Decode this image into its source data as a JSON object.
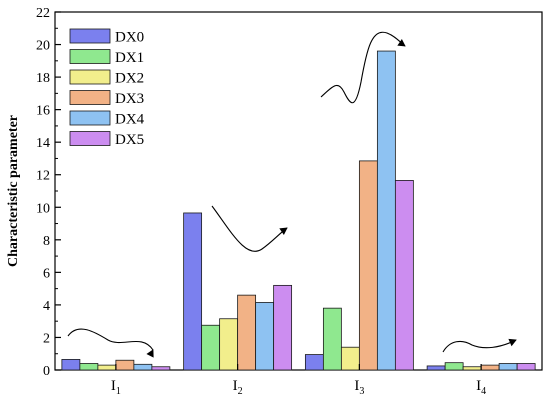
{
  "chart_data": {
    "type": "bar",
    "ylabel": "Characteristic parameter",
    "xlabel": "",
    "ylim": [
      0,
      22
    ],
    "yticks": [
      0,
      2,
      4,
      6,
      8,
      10,
      12,
      14,
      16,
      18,
      20,
      22
    ],
    "categories": [
      {
        "base": "I",
        "sub": "1"
      },
      {
        "base": "I",
        "sub": "2"
      },
      {
        "base": "I",
        "sub": "3"
      },
      {
        "base": "I",
        "sub": "4"
      }
    ],
    "series": [
      {
        "name": "DX0",
        "color": "#7b80ee",
        "values": [
          0.65,
          9.65,
          0.95,
          0.25
        ]
      },
      {
        "name": "DX1",
        "color": "#8fe88f",
        "values": [
          0.4,
          2.75,
          3.8,
          0.45
        ]
      },
      {
        "name": "DX2",
        "color": "#f2ee8c",
        "values": [
          0.3,
          3.15,
          1.4,
          0.2
        ]
      },
      {
        "name": "DX3",
        "color": "#f2b286",
        "values": [
          0.6,
          4.6,
          12.85,
          0.3
        ]
      },
      {
        "name": "DX4",
        "color": "#8ec2f2",
        "values": [
          0.35,
          4.15,
          19.6,
          0.4
        ]
      },
      {
        "name": "DX5",
        "color": "#cc8df0",
        "values": [
          0.2,
          5.2,
          11.65,
          0.4
        ]
      }
    ],
    "legend_position": "top-left",
    "grid": false,
    "annotations": [
      "trend-arrow",
      "trend-arrow",
      "trend-arrow",
      "trend-arrow"
    ]
  }
}
